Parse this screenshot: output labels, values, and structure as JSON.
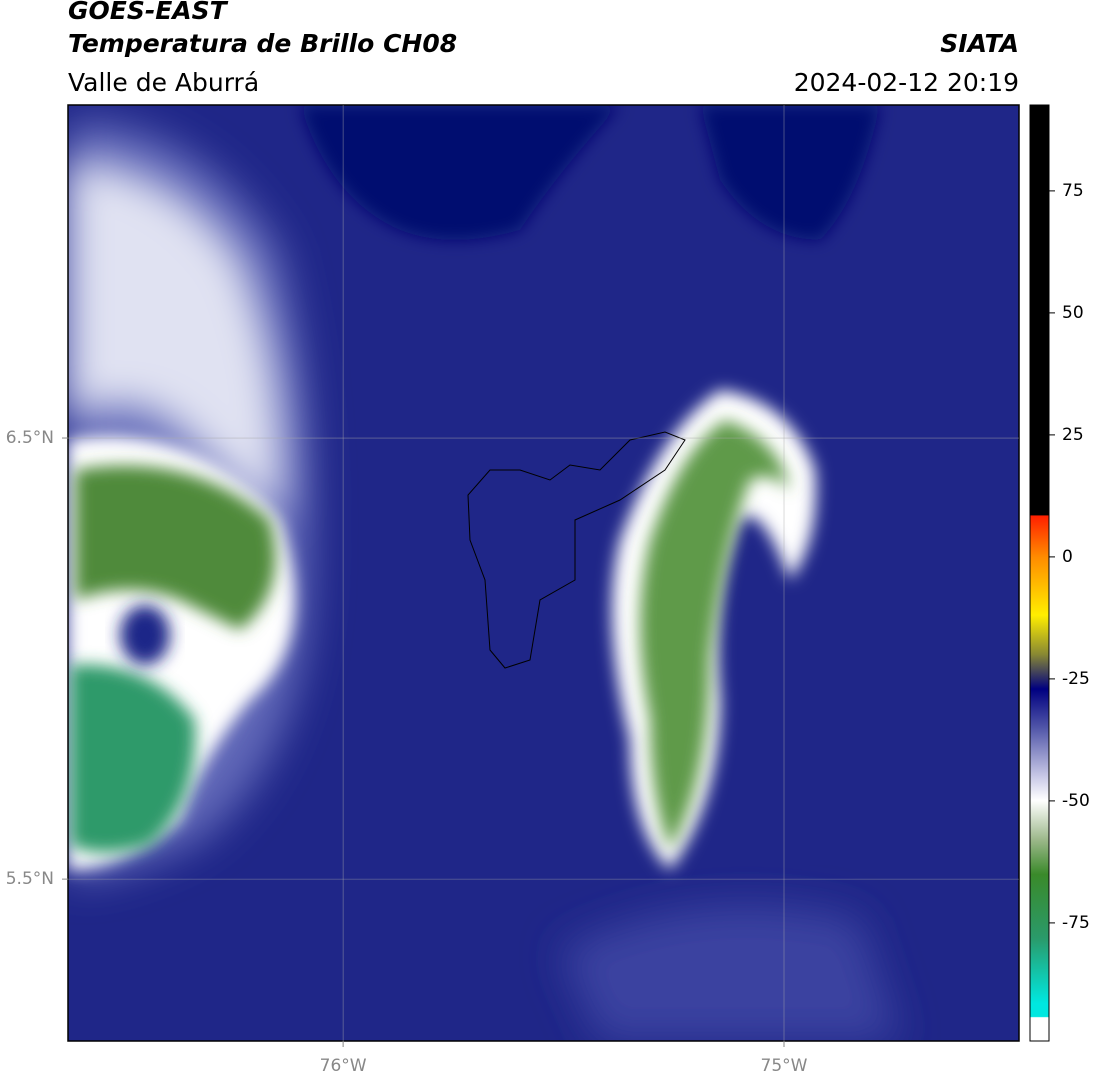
{
  "header": {
    "satellite": "GOES-EAST",
    "product": "Temperatura de Brillo CH08",
    "region": "Valle de Aburrá",
    "agency": "SIATA",
    "datetime": "2024-02-12 20:19"
  },
  "map": {
    "xlim": [
      -76.624,
      -74.467
    ],
    "ylim": [
      5.133,
      7.255
    ],
    "xticks": [
      {
        "value": -76,
        "label": "76°W"
      },
      {
        "value": -75,
        "label": "75°W"
      }
    ],
    "yticks": [
      {
        "value": 6.5,
        "label": "6.5°N"
      },
      {
        "value": 5.5,
        "label": "5.5°N"
      }
    ],
    "grid": true
  },
  "colorbar": {
    "lim": [
      -99.2,
      92.6
    ],
    "ticks": [
      75,
      50,
      25,
      0,
      -25,
      -50,
      -75
    ]
  }
}
